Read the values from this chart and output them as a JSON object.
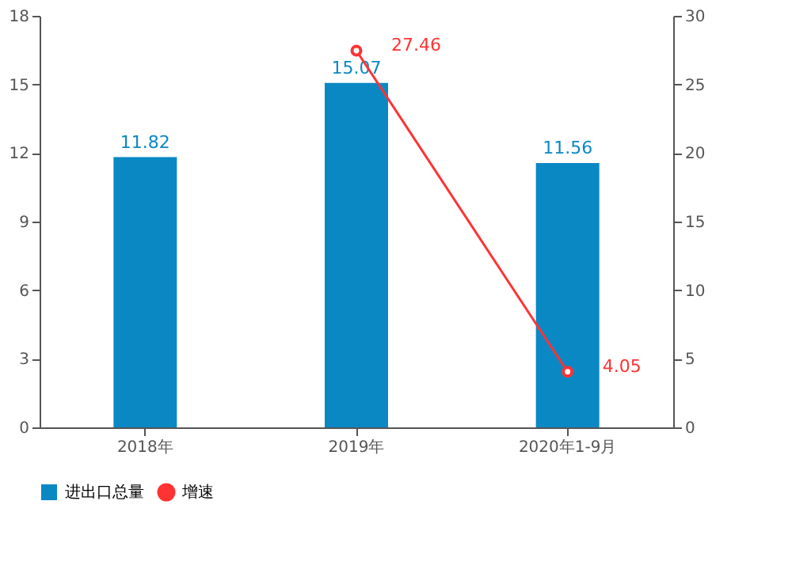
{
  "chart_data": {
    "type": "bar",
    "categories": [
      "2018年",
      "2019年",
      "2020年1-9月"
    ],
    "series": [
      {
        "name": "进出口总量",
        "color": "#0a88c4",
        "values": [
          11.82,
          15.07,
          11.56
        ]
      },
      {
        "name": "增速",
        "type": "line",
        "axis": "y2",
        "color": "#ff3333",
        "marker": "circle",
        "values": [
          null,
          27.46,
          4.05
        ]
      }
    ],
    "ylim": [
      0,
      18
    ],
    "yticks": [
      0,
      3,
      6,
      9,
      12,
      15,
      18
    ],
    "y2lim": [
      0,
      30
    ],
    "y2ticks": [
      0,
      5,
      10,
      15,
      20,
      25,
      30
    ],
    "data_labels": true,
    "grid": false,
    "legend": "bottom"
  }
}
